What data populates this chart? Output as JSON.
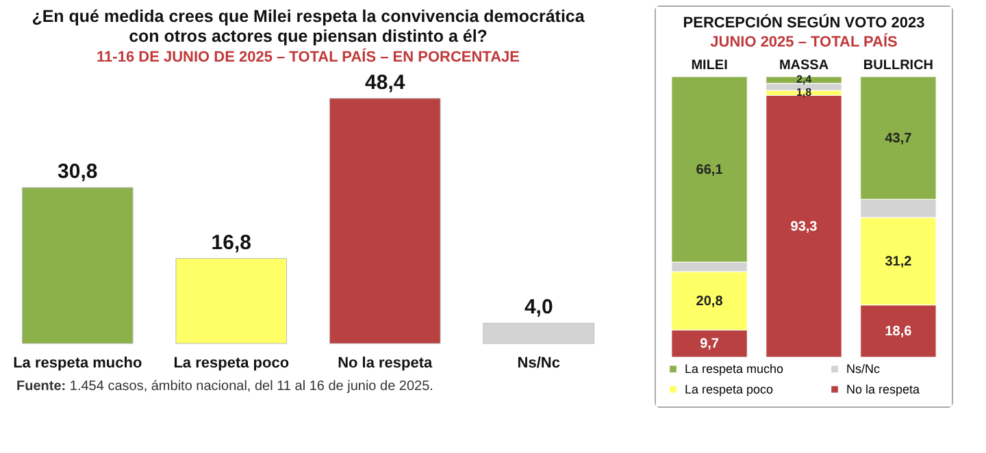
{
  "chart_data": [
    {
      "type": "bar",
      "title": "¿En qué medida crees que Milei respeta la convivencia democrática\ncon otros actores que piensan distinto a él?",
      "subtitle": "11-16 DE JUNIO DE 2025 – TOTAL PAÍS – EN PORCENTAJE",
      "categories": [
        "La respeta mucho",
        "La respeta poco",
        "No la respeta",
        "Ns/Nc"
      ],
      "values": [
        30.8,
        16.8,
        48.4,
        4.0
      ],
      "colors": [
        "#8cb04a",
        "#ffff66",
        "#b94141",
        "#d3d3d3"
      ],
      "value_labels": [
        "30,8",
        "16,8",
        "48,4",
        "4,0"
      ],
      "tick_labels": "x",
      "annotations": [
        "Fuente: 1.454 casos, ámbito nacional, del 11 al 16 de junio de 2025."
      ]
    },
    {
      "type": "bar",
      "stacked": true,
      "title": "PERCEPCIÓN SEGÚN VOTO 2023",
      "subtitle": "JUNIO 2025 – TOTAL PAÍS",
      "categories": [
        "MILEI",
        "MASSA",
        "BULLRICH"
      ],
      "tick_labels": "x",
      "legend": "bottom",
      "series": [
        {
          "name": "No la respeta",
          "color": "#b94141",
          "values": [
            9.7,
            93.3,
            18.6
          ],
          "value_labels": [
            "9,7",
            "93,3",
            "18,6"
          ]
        },
        {
          "name": "La respeta poco",
          "color": "#ffff66",
          "values": [
            20.8,
            1.8,
            31.2
          ],
          "value_labels": [
            "20,8",
            "1,8",
            "31,2"
          ]
        },
        {
          "name": "Ns/Nc",
          "color": "#d3d3d3",
          "values": [
            3.4,
            2.5,
            6.5
          ],
          "value_labels": [
            null,
            null,
            null
          ]
        },
        {
          "name": "La respeta mucho",
          "color": "#8cb04a",
          "values": [
            66.1,
            2.4,
            43.7
          ],
          "value_labels": [
            "66,1",
            "2,4",
            "43,7"
          ]
        }
      ]
    }
  ]
}
